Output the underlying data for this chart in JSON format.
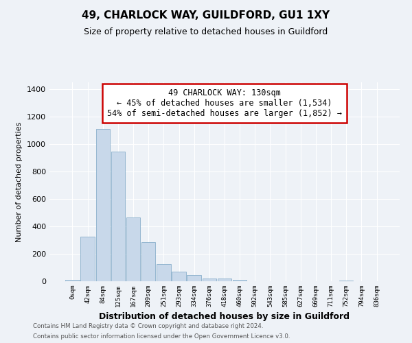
{
  "title": "49, CHARLOCK WAY, GUILDFORD, GU1 1XY",
  "subtitle": "Size of property relative to detached houses in Guildford",
  "xlabel": "Distribution of detached houses by size in Guildford",
  "ylabel": "Number of detached properties",
  "bar_color": "#c8d8ea",
  "bar_edge_color": "#8ab0cc",
  "categories": [
    "0sqm",
    "42sqm",
    "84sqm",
    "125sqm",
    "167sqm",
    "209sqm",
    "251sqm",
    "293sqm",
    "334sqm",
    "376sqm",
    "418sqm",
    "460sqm",
    "502sqm",
    "543sqm",
    "585sqm",
    "627sqm",
    "669sqm",
    "711sqm",
    "752sqm",
    "794sqm",
    "836sqm"
  ],
  "values": [
    8,
    325,
    1110,
    945,
    465,
    285,
    125,
    70,
    45,
    20,
    18,
    8,
    0,
    0,
    0,
    0,
    0,
    0,
    5,
    0,
    0
  ],
  "ylim": [
    0,
    1450
  ],
  "yticks": [
    0,
    200,
    400,
    600,
    800,
    1000,
    1200,
    1400
  ],
  "annotation_line1": "49 CHARLOCK WAY: 130sqm",
  "annotation_line2": "← 45% of detached houses are smaller (1,534)",
  "annotation_line3": "54% of semi-detached houses are larger (1,852) →",
  "footer_line1": "Contains HM Land Registry data © Crown copyright and database right 2024.",
  "footer_line2": "Contains public sector information licensed under the Open Government Licence v3.0.",
  "background_color": "#eef2f7",
  "grid_color": "#ffffff",
  "annotation_edge_color": "#cc0000",
  "title_fontsize": 11,
  "subtitle_fontsize": 9
}
